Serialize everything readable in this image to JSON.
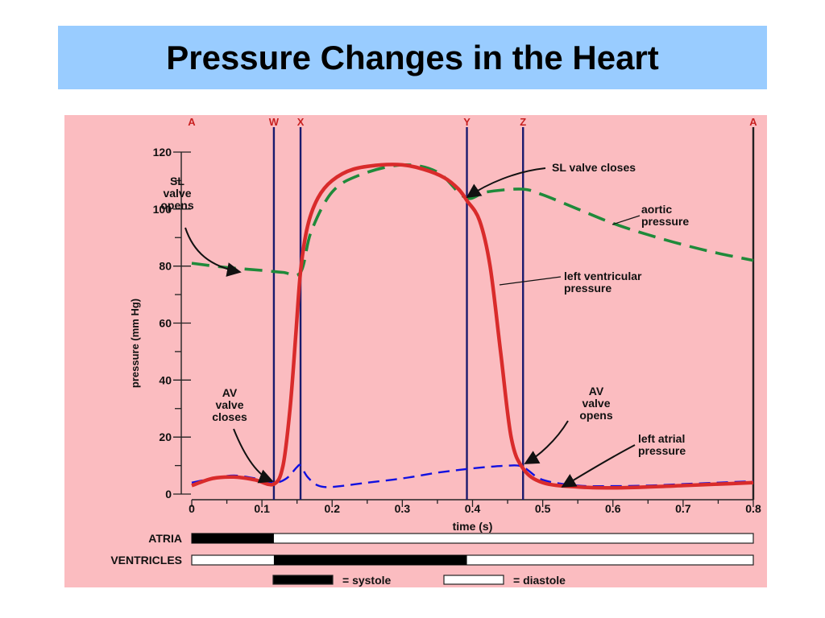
{
  "slide": {
    "title": "Pressure Changes in the Heart"
  },
  "colors": {
    "slide_background": "#ffffff",
    "title_background": "#99ccff",
    "figure_background": "#fbbcc0",
    "ventricular": "#d92b2b",
    "aortic": "#1f8a3a",
    "atrial": "#1010e0",
    "marker_lines": "#1a1a6e",
    "phase_labels": "#c82020"
  },
  "chart_data": {
    "type": "line",
    "xlabel": "time (s)",
    "ylabel": "pressure (mm Hg)",
    "xlim": [
      0,
      0.8
    ],
    "ylim": [
      0,
      120
    ],
    "x_ticks": [
      "0",
      "0.1",
      "0.2",
      "0.3",
      "0.4",
      "0.5",
      "0.6",
      "0.7",
      "0.8"
    ],
    "y_ticks": [
      "0",
      "20",
      "40",
      "60",
      "80",
      "100",
      "120"
    ],
    "grid": false,
    "series": [
      {
        "name": "left ventricular pressure",
        "style": "solid",
        "x": [
          0,
          0.03,
          0.06,
          0.09,
          0.117,
          0.13,
          0.14,
          0.148,
          0.155,
          0.165,
          0.18,
          0.2,
          0.23,
          0.27,
          0.3,
          0.33,
          0.36,
          0.38,
          0.392,
          0.41,
          0.425,
          0.44,
          0.455,
          0.472,
          0.5,
          0.55,
          0.6,
          0.65,
          0.7,
          0.75,
          0.8
        ],
        "y": [
          3,
          5.5,
          6,
          5,
          3.5,
          10,
          30,
          55,
          78,
          94,
          104,
          110,
          114,
          115.5,
          115.5,
          114,
          111,
          107,
          103,
          96,
          80,
          50,
          20,
          9,
          4,
          2.5,
          2.2,
          2.5,
          3,
          3.5,
          4
        ]
      },
      {
        "name": "aortic pressure",
        "style": "dashed",
        "x": [
          0,
          0.05,
          0.1,
          0.13,
          0.155,
          0.17,
          0.2,
          0.24,
          0.3,
          0.35,
          0.39,
          0.42,
          0.47,
          0.5,
          0.55,
          0.6,
          0.65,
          0.7,
          0.75,
          0.8
        ],
        "y": [
          81,
          79.5,
          78.5,
          77.8,
          77.8,
          92,
          106,
          112,
          115.5,
          113,
          104,
          106,
          107,
          105,
          100,
          95,
          91,
          87.5,
          84.5,
          82
        ]
      },
      {
        "name": "left atrial pressure",
        "style": "dashed",
        "x": [
          0,
          0.03,
          0.06,
          0.09,
          0.117,
          0.135,
          0.15,
          0.155,
          0.165,
          0.18,
          0.2,
          0.25,
          0.3,
          0.35,
          0.4,
          0.45,
          0.472,
          0.5,
          0.55,
          0.6,
          0.65,
          0.7,
          0.75,
          0.8
        ],
        "y": [
          4,
          5.5,
          6.5,
          5.5,
          4,
          5.5,
          9.5,
          10,
          6,
          3,
          2.5,
          4,
          5.5,
          7.5,
          9,
          10,
          9.5,
          5,
          3,
          2.8,
          3,
          3.5,
          4,
          4.5
        ]
      }
    ],
    "markers": [
      {
        "label": "A",
        "x": 0
      },
      {
        "label": "W",
        "x": 0.117
      },
      {
        "label": "X",
        "x": 0.155
      },
      {
        "label": "Y",
        "x": 0.392
      },
      {
        "label": "Z",
        "x": 0.472
      },
      {
        "label": "A",
        "x": 0.8
      }
    ],
    "annotations": [
      {
        "lines": [
          "SL",
          "valve",
          "opens"
        ]
      },
      {
        "lines": [
          "SL valve closes"
        ]
      },
      {
        "lines": [
          "aortic",
          "pressure"
        ]
      },
      {
        "lines": [
          "left ventricular",
          "pressure"
        ]
      },
      {
        "lines": [
          "AV",
          "valve",
          "closes"
        ]
      },
      {
        "lines": [
          "AV",
          "valve",
          "opens"
        ]
      },
      {
        "lines": [
          "left atrial",
          "pressure"
        ]
      }
    ],
    "phase_bars": [
      {
        "label": "ATRIA",
        "systole": [
          0,
          0.117
        ]
      },
      {
        "label": "VENTRICLES",
        "systole": [
          0.117,
          0.392
        ]
      }
    ],
    "legend": [
      {
        "label": "= systole",
        "fill": "#000000"
      },
      {
        "label": "= diastole",
        "fill": "#ffffff"
      }
    ]
  }
}
